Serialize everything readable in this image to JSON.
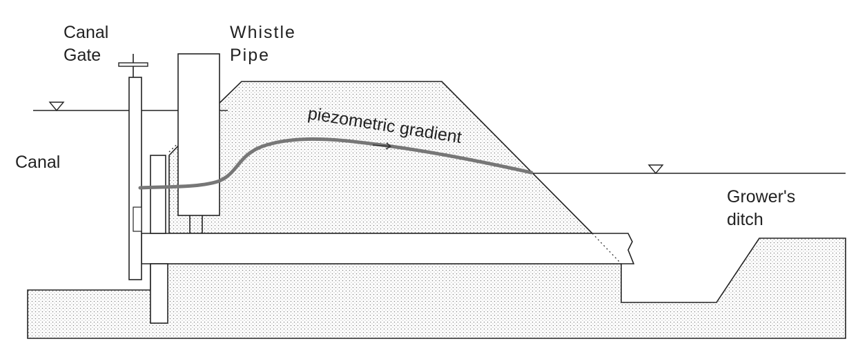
{
  "labels": {
    "canal_gate": [
      "Canal",
      "Gate"
    ],
    "whistle_pipe": [
      "Whistle",
      "Pipe"
    ],
    "canal": "Canal",
    "gradient": "piezometric gradient",
    "growers_ditch": [
      "Grower's",
      "ditch"
    ]
  }
}
